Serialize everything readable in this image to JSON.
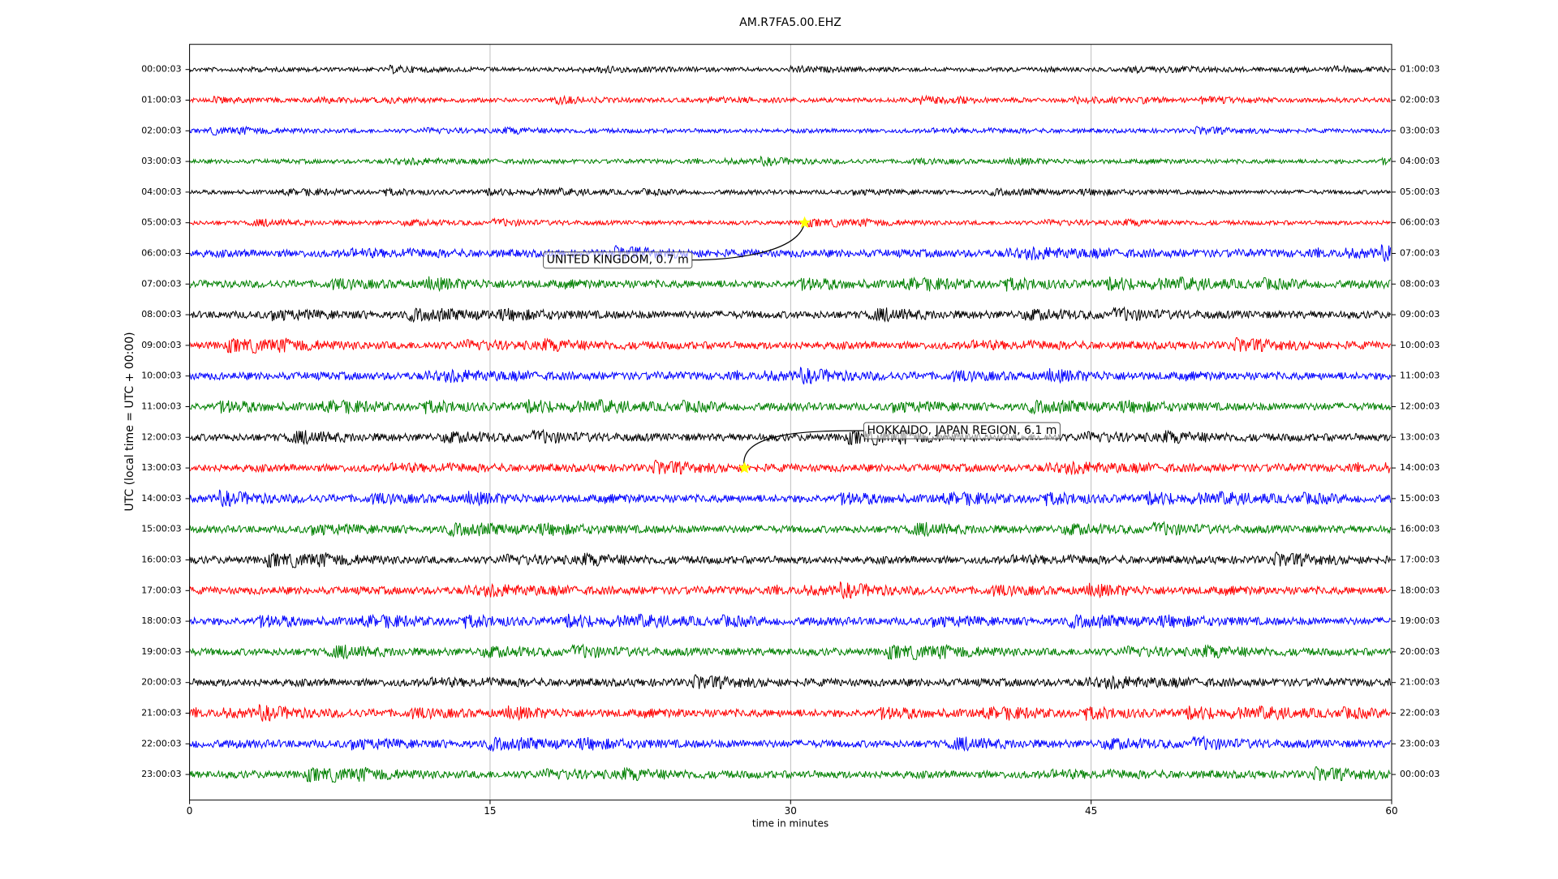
{
  "chart_data": {
    "type": "dayplot",
    "title": "AM.R7FA5.00.EHZ",
    "xlabel": "time in minutes",
    "ylabel": "UTC (local time = UTC + 00:00)",
    "xlim": [
      0,
      60
    ],
    "xticks": [
      0,
      15,
      30,
      45,
      60
    ],
    "grid": true,
    "series": [
      {
        "name": "00:00:03",
        "right_label": "01:00:03",
        "color": "#000000"
      },
      {
        "name": "01:00:03",
        "right_label": "02:00:03",
        "color": "#ff0000"
      },
      {
        "name": "02:00:03",
        "right_label": "03:00:03",
        "color": "#0000ff"
      },
      {
        "name": "03:00:03",
        "right_label": "04:00:03",
        "color": "#008000"
      },
      {
        "name": "04:00:03",
        "right_label": "05:00:03",
        "color": "#000000"
      },
      {
        "name": "05:00:03",
        "right_label": "06:00:03",
        "color": "#ff0000"
      },
      {
        "name": "06:00:03",
        "right_label": "07:00:03",
        "color": "#0000ff"
      },
      {
        "name": "07:00:03",
        "right_label": "08:00:03",
        "color": "#008000"
      },
      {
        "name": "08:00:03",
        "right_label": "09:00:03",
        "color": "#000000"
      },
      {
        "name": "09:00:03",
        "right_label": "10:00:03",
        "color": "#ff0000"
      },
      {
        "name": "10:00:03",
        "right_label": "11:00:03",
        "color": "#0000ff"
      },
      {
        "name": "11:00:03",
        "right_label": "12:00:03",
        "color": "#008000"
      },
      {
        "name": "12:00:03",
        "right_label": "13:00:03",
        "color": "#000000"
      },
      {
        "name": "13:00:03",
        "right_label": "14:00:03",
        "color": "#ff0000"
      },
      {
        "name": "14:00:03",
        "right_label": "15:00:03",
        "color": "#0000ff"
      },
      {
        "name": "15:00:03",
        "right_label": "16:00:03",
        "color": "#008000"
      },
      {
        "name": "16:00:03",
        "right_label": "17:00:03",
        "color": "#000000"
      },
      {
        "name": "17:00:03",
        "right_label": "18:00:03",
        "color": "#ff0000"
      },
      {
        "name": "18:00:03",
        "right_label": "19:00:03",
        "color": "#0000ff"
      },
      {
        "name": "19:00:03",
        "right_label": "20:00:03",
        "color": "#008000"
      },
      {
        "name": "20:00:03",
        "right_label": "21:00:03",
        "color": "#000000"
      },
      {
        "name": "21:00:03",
        "right_label": "22:00:03",
        "color": "#ff0000"
      },
      {
        "name": "22:00:03",
        "right_label": "23:00:03",
        "color": "#0000ff"
      },
      {
        "name": "23:00:03",
        "right_label": "00:00:03",
        "color": "#008000"
      }
    ],
    "annotations": [
      {
        "text": "UNITED KINGDOM, 0.7 m",
        "row": 5,
        "x": 30.7
      },
      {
        "text": "HOKKAIDO, JAPAN REGION, 6.1 m",
        "row": 13,
        "x": 27.7
      }
    ]
  }
}
